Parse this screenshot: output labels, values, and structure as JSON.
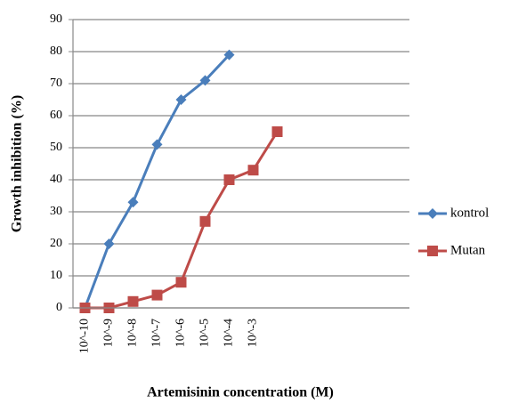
{
  "chart_data": {
    "type": "line",
    "x_label": "Artemisinin concentration (M)",
    "y_label": "Growth inhibition  (%)",
    "categories": [
      "10^-10",
      "10^-9",
      "10^-8",
      "10^-7",
      "10^-6",
      "10^-5",
      "10^-4",
      "10^-3",
      null,
      null,
      null,
      null,
      null,
      null
    ],
    "series": [
      {
        "name": "kontrol",
        "color": "#4a7ebb",
        "marker": "diamond",
        "values": [
          0,
          20,
          33,
          51,
          65,
          71,
          79,
          null,
          null,
          null,
          null,
          null,
          null,
          null
        ]
      },
      {
        "name": "Mutan",
        "color": "#be4b48",
        "marker": "square",
        "values": [
          0,
          0,
          2,
          4,
          8,
          27,
          40,
          43,
          55,
          null,
          null,
          null,
          null,
          null
        ]
      }
    ],
    "ylim": [
      0,
      90
    ],
    "yticks": [
      0,
      10,
      20,
      30,
      40,
      50,
      60,
      70,
      80,
      90
    ],
    "grid": true,
    "legend": "right"
  }
}
